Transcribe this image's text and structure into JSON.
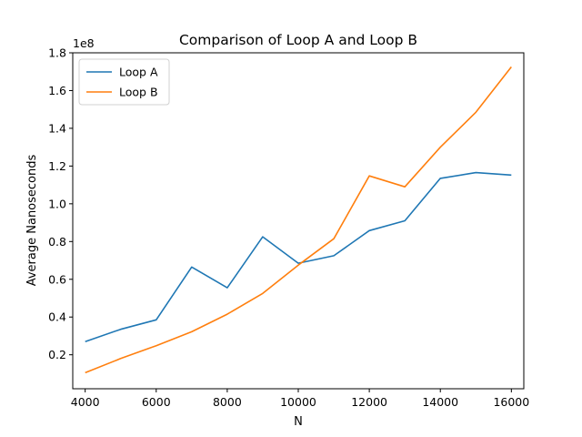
{
  "chart_data": {
    "type": "line",
    "title": "Comparison of Loop A and Loop B",
    "xlabel": "N",
    "ylabel": "Average Nanoseconds",
    "y_offset_label": "1e8",
    "x": [
      4000,
      5000,
      6000,
      7000,
      8000,
      9000,
      10000,
      11000,
      12000,
      13000,
      14000,
      15000,
      16000
    ],
    "series": [
      {
        "name": "Loop A",
        "color": "#1f77b4",
        "values": [
          27000000,
          33500000,
          38500000,
          66500000,
          55500000,
          82500000,
          68500000,
          72500000,
          85800000,
          91000000,
          113500000,
          116500000,
          115200000
        ]
      },
      {
        "name": "Loop B",
        "color": "#ff7f0e",
        "values": [
          10500000,
          18000000,
          24800000,
          32200000,
          41500000,
          52500000,
          67500000,
          81500000,
          114800000,
          109000000,
          130000000,
          148500000,
          172500000
        ]
      }
    ],
    "xlim": [
      3650,
      16350
    ],
    "ylim": [
      2000000,
      180000000
    ],
    "x_ticks": [
      {
        "value": 4000,
        "label": "4000"
      },
      {
        "value": 6000,
        "label": "6000"
      },
      {
        "value": 8000,
        "label": "8000"
      },
      {
        "value": 10000,
        "label": "10000"
      },
      {
        "value": 12000,
        "label": "12000"
      },
      {
        "value": 14000,
        "label": "14000"
      },
      {
        "value": 16000,
        "label": "16000"
      }
    ],
    "y_ticks": [
      {
        "value": 20000000,
        "label": "0.2"
      },
      {
        "value": 40000000,
        "label": "0.4"
      },
      {
        "value": 60000000,
        "label": "0.6"
      },
      {
        "value": 80000000,
        "label": "0.8"
      },
      {
        "value": 100000000,
        "label": "1.0"
      },
      {
        "value": 120000000,
        "label": "1.2"
      },
      {
        "value": 140000000,
        "label": "1.4"
      },
      {
        "value": 160000000,
        "label": "1.6"
      },
      {
        "value": 180000000,
        "label": "1.8"
      }
    ],
    "legend_position": "top-left",
    "grid": false
  }
}
